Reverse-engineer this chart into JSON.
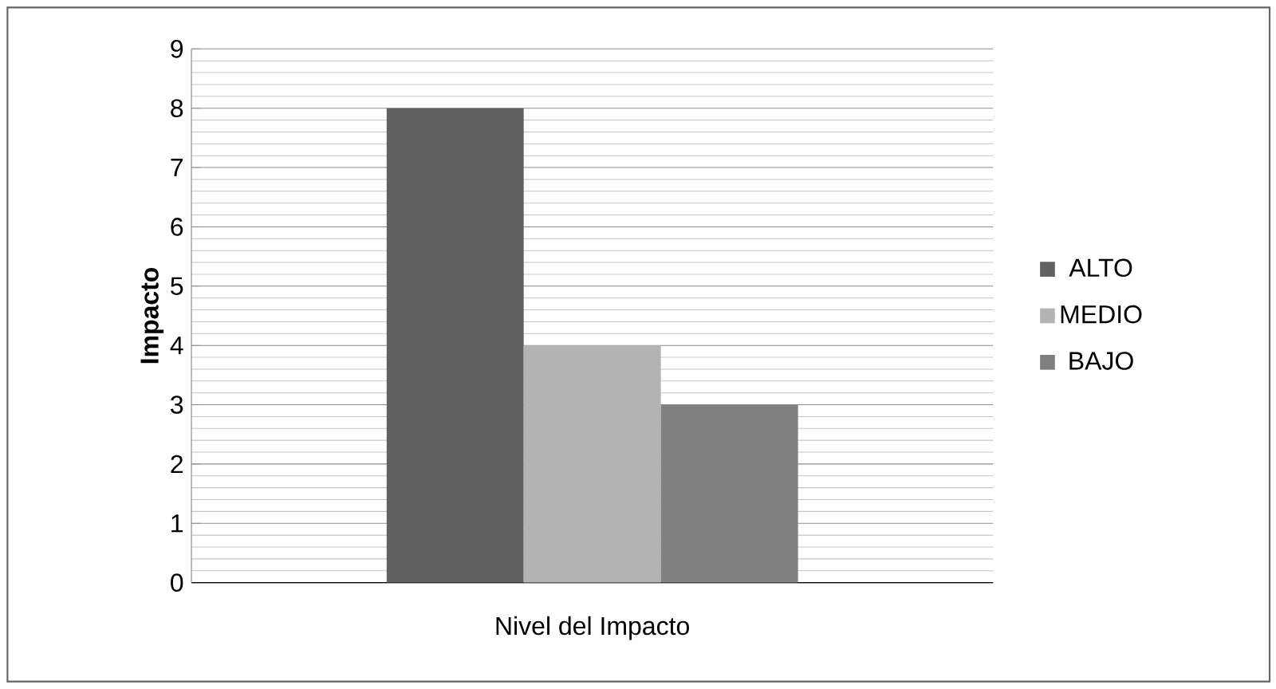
{
  "chart_data": {
    "type": "bar",
    "ylabel": "Impacto",
    "categories": [
      "Nivel del Impacto"
    ],
    "series": [
      {
        "name": "ALTO",
        "color": "#616161",
        "values": [
          8
        ]
      },
      {
        "name": "MEDIO",
        "color": "#b3b3b3",
        "values": [
          4
        ]
      },
      {
        "name": "BAJO",
        "color": "#7f7f7f",
        "values": [
          3
        ]
      }
    ],
    "ylim": [
      0,
      9
    ],
    "yticks": [
      0,
      1,
      2,
      3,
      4,
      5,
      6,
      7,
      8,
      9
    ],
    "grid": "y",
    "legend": "right"
  }
}
